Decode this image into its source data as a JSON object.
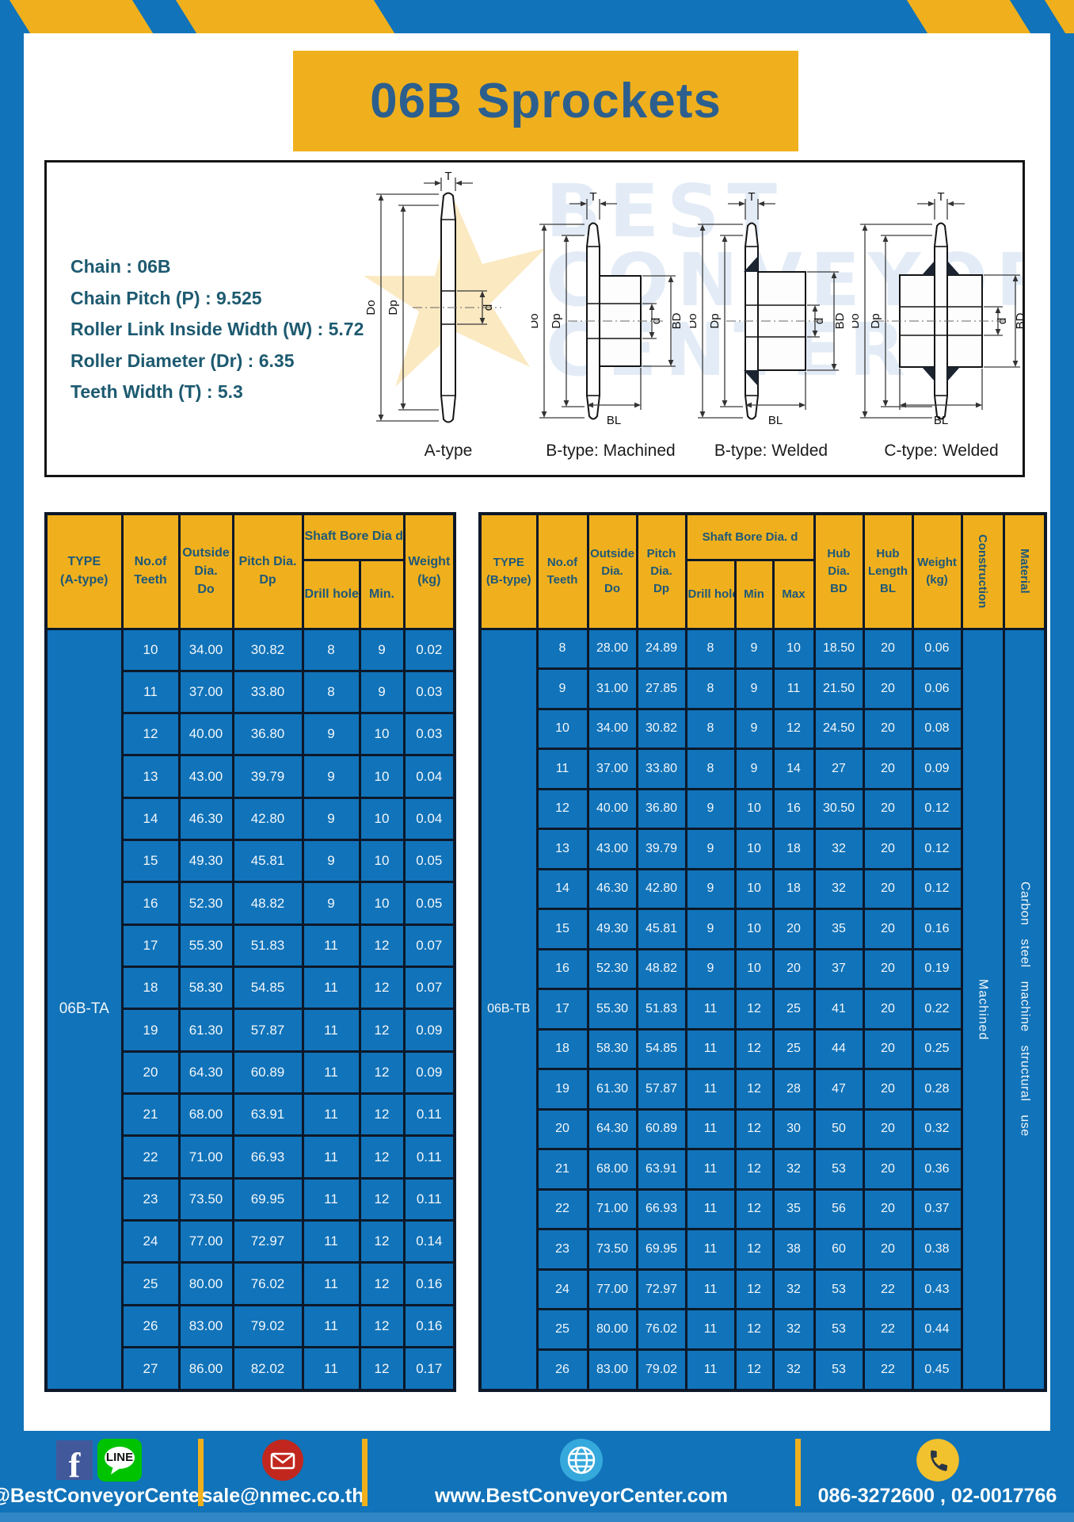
{
  "header": {
    "title": "06B Sprockets"
  },
  "specs": {
    "sep": " : ",
    "items": [
      {
        "label": "Chain",
        "value": "06B"
      },
      {
        "label": "Chain Pitch (P)",
        "value": "9.525"
      },
      {
        "label": "Roller Link Inside Width (W)",
        "value": "5.72"
      },
      {
        "label": "Roller Diameter (Dr)",
        "value": "6.35"
      },
      {
        "label": "Teeth Width (T)",
        "value": "5.3"
      }
    ]
  },
  "dims": {
    "T": "T",
    "Do": "Do",
    "Dp": "Dp",
    "d": "d",
    "BD": "BD",
    "BL": "BL"
  },
  "diagrams": [
    {
      "caption": "A-type"
    },
    {
      "caption": "B-type: Machined"
    },
    {
      "caption": "B-type: Welded"
    },
    {
      "caption": "C-type: Welded"
    }
  ],
  "watermark": {
    "lines": [
      "BEST",
      "CONVEYOR",
      "CENTER"
    ]
  },
  "table_a": {
    "type_label": "06B-TA",
    "headers": {
      "type": [
        "TYPE",
        "(A-type)"
      ],
      "teeth": [
        "No.of",
        "Teeth"
      ],
      "outside": [
        "Outside",
        "Dia.",
        "Do"
      ],
      "pitch": [
        "Pitch Dia.",
        "Dp"
      ],
      "bore_group": "Shaft Bore Dia d",
      "drill": "Drill hole",
      "min": "Min.",
      "weight": [
        "Weight",
        "(kg)"
      ]
    },
    "rows": [
      [
        "10",
        "34.00",
        "30.82",
        "8",
        "9",
        "0.02"
      ],
      [
        "11",
        "37.00",
        "33.80",
        "8",
        "9",
        "0.03"
      ],
      [
        "12",
        "40.00",
        "36.80",
        "9",
        "10",
        "0.03"
      ],
      [
        "13",
        "43.00",
        "39.79",
        "9",
        "10",
        "0.04"
      ],
      [
        "14",
        "46.30",
        "42.80",
        "9",
        "10",
        "0.04"
      ],
      [
        "15",
        "49.30",
        "45.81",
        "9",
        "10",
        "0.05"
      ],
      [
        "16",
        "52.30",
        "48.82",
        "9",
        "10",
        "0.05"
      ],
      [
        "17",
        "55.30",
        "51.83",
        "11",
        "12",
        "0.07"
      ],
      [
        "18",
        "58.30",
        "54.85",
        "11",
        "12",
        "0.07"
      ],
      [
        "19",
        "61.30",
        "57.87",
        "11",
        "12",
        "0.09"
      ],
      [
        "20",
        "64.30",
        "60.89",
        "11",
        "12",
        "0.09"
      ],
      [
        "21",
        "68.00",
        "63.91",
        "11",
        "12",
        "0.11"
      ],
      [
        "22",
        "71.00",
        "66.93",
        "11",
        "12",
        "0.11"
      ],
      [
        "23",
        "73.50",
        "69.95",
        "11",
        "12",
        "0.11"
      ],
      [
        "24",
        "77.00",
        "72.97",
        "11",
        "12",
        "0.14"
      ],
      [
        "25",
        "80.00",
        "76.02",
        "11",
        "12",
        "0.16"
      ],
      [
        "26",
        "83.00",
        "79.02",
        "11",
        "12",
        "0.16"
      ],
      [
        "27",
        "86.00",
        "82.02",
        "11",
        "12",
        "0.17"
      ]
    ]
  },
  "table_b": {
    "type_label": "06B-TB",
    "construction": "Machined",
    "material": "Carbon steel machine structural use",
    "headers": {
      "type": [
        "TYPE",
        "(B-type)"
      ],
      "teeth": [
        "No.of",
        "Teeth"
      ],
      "outside": [
        "Outside",
        "Dia.",
        "Do"
      ],
      "pitch": [
        "Pitch",
        "Dia.",
        "Dp"
      ],
      "bore_group": "Shaft Bore Dia. d",
      "drill": "Drill hole",
      "min": "Min",
      "max": "Max",
      "hub_dia": [
        "Hub",
        "Dia.",
        "BD"
      ],
      "hub_len": [
        "Hub",
        "Length",
        "BL"
      ],
      "weight": [
        "Weight",
        "(kg)"
      ],
      "construction": "Construction",
      "material": "Material"
    },
    "rows": [
      [
        "8",
        "28.00",
        "24.89",
        "8",
        "9",
        "10",
        "18.50",
        "20",
        "0.06"
      ],
      [
        "9",
        "31.00",
        "27.85",
        "8",
        "9",
        "11",
        "21.50",
        "20",
        "0.06"
      ],
      [
        "10",
        "34.00",
        "30.82",
        "8",
        "9",
        "12",
        "24.50",
        "20",
        "0.08"
      ],
      [
        "11",
        "37.00",
        "33.80",
        "8",
        "9",
        "14",
        "27",
        "20",
        "0.09"
      ],
      [
        "12",
        "40.00",
        "36.80",
        "9",
        "10",
        "16",
        "30.50",
        "20",
        "0.12"
      ],
      [
        "13",
        "43.00",
        "39.79",
        "9",
        "10",
        "18",
        "32",
        "20",
        "0.12"
      ],
      [
        "14",
        "46.30",
        "42.80",
        "9",
        "10",
        "18",
        "32",
        "20",
        "0.12"
      ],
      [
        "15",
        "49.30",
        "45.81",
        "9",
        "10",
        "20",
        "35",
        "20",
        "0.16"
      ],
      [
        "16",
        "52.30",
        "48.82",
        "9",
        "10",
        "20",
        "37",
        "20",
        "0.19"
      ],
      [
        "17",
        "55.30",
        "51.83",
        "11",
        "12",
        "25",
        "41",
        "20",
        "0.22"
      ],
      [
        "18",
        "58.30",
        "54.85",
        "11",
        "12",
        "25",
        "44",
        "20",
        "0.25"
      ],
      [
        "19",
        "61.30",
        "57.87",
        "11",
        "12",
        "28",
        "47",
        "20",
        "0.28"
      ],
      [
        "20",
        "64.30",
        "60.89",
        "11",
        "12",
        "30",
        "50",
        "20",
        "0.32"
      ],
      [
        "21",
        "68.00",
        "63.91",
        "11",
        "12",
        "32",
        "53",
        "20",
        "0.36"
      ],
      [
        "22",
        "71.00",
        "66.93",
        "11",
        "12",
        "35",
        "56",
        "20",
        "0.37"
      ],
      [
        "23",
        "73.50",
        "69.95",
        "11",
        "12",
        "38",
        "60",
        "20",
        "0.38"
      ],
      [
        "24",
        "77.00",
        "72.97",
        "11",
        "12",
        "32",
        "53",
        "22",
        "0.43"
      ],
      [
        "25",
        "80.00",
        "76.02",
        "11",
        "12",
        "32",
        "53",
        "22",
        "0.44"
      ],
      [
        "26",
        "83.00",
        "79.02",
        "11",
        "12",
        "32",
        "53",
        "22",
        "0.45"
      ]
    ]
  },
  "footer": {
    "fb_glyph": "f",
    "line_badge": "LINE",
    "sections": [
      {
        "label": "@BestConveyorCenter"
      },
      {
        "label": "sale@nmec.co.th"
      },
      {
        "label": "www.BestConveyorCenter.com"
      },
      {
        "label": "086-3272600 , 02-0017766"
      }
    ]
  },
  "colors": {
    "frame_blue": "#1173b9",
    "accent_yellow": "#f0b01d",
    "header_text": "#1e5878",
    "title_text": "#2c5f8e",
    "border_dark": "#0c1829",
    "facebook_blue": "#41599b",
    "line_green": "#00c300",
    "mail_red": "#c1271e",
    "globe_blue": "#35a8dc",
    "phone_yellow": "#f2c12e"
  }
}
